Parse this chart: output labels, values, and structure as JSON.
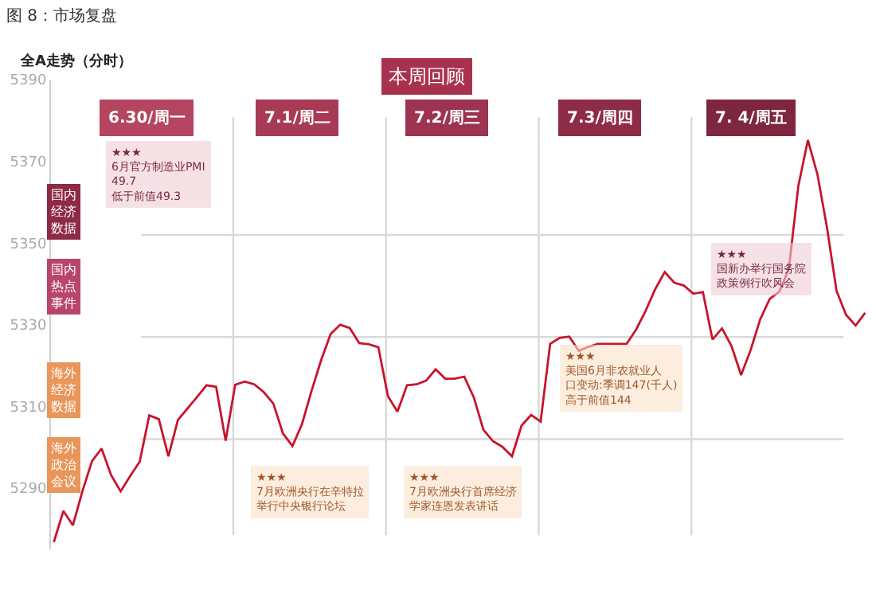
{
  "chart_data": {
    "type": "line",
    "title": "图 8：市场复盘",
    "subtitle": "本周回顾",
    "ylabel": "全A走势（分时）",
    "categories": [
      null,
      null,
      null,
      null,
      null,
      null,
      null,
      null,
      null,
      null,
      null,
      null,
      null,
      null,
      null,
      null,
      null,
      null,
      null,
      null,
      null,
      null,
      null,
      null,
      null,
      null,
      null,
      null,
      null,
      null,
      null,
      null,
      null,
      null,
      null,
      null,
      null,
      null,
      null,
      null,
      null,
      null,
      null,
      null,
      null,
      null,
      null,
      null,
      null,
      null,
      null,
      null,
      null,
      null,
      null,
      null,
      null,
      null,
      null,
      null,
      null,
      null,
      null,
      null,
      null,
      null,
      null,
      null,
      null,
      null,
      null,
      null,
      null,
      null,
      null,
      null,
      null,
      null,
      null,
      null,
      null,
      null,
      null,
      null,
      null,
      null
    ],
    "series": [
      {
        "color": "#c8142c",
        "values": [
          5276.8,
          5284.4,
          5280.9,
          5289.3,
          5296.6,
          5299.7,
          5293.2,
          5289.2,
          5293.0,
          5296.5,
          5307.8,
          5306.9,
          5297.8,
          5306.7,
          5309.5,
          5312.3,
          5315.2,
          5314.8,
          5301.6,
          5315.3,
          5316.1,
          5315.4,
          5313.5,
          5310.7,
          5303.4,
          5300.3,
          5305.7,
          5313.8,
          5321.3,
          5327.7,
          5330.0,
          5329.2,
          5325.5,
          5325.2,
          5324.5,
          5312.5,
          5308.7,
          5315.2,
          5315.4,
          5316.3,
          5319.1,
          5316.8,
          5316.8,
          5317.3,
          5312.2,
          5304.3,
          5301.5,
          5300.1,
          5297.8,
          5305.3,
          5307.9,
          5306.3,
          5325.3,
          5326.8,
          5327.1,
          5323.6,
          5324.6,
          5325.3,
          5325.3,
          5325.3,
          5325.3,
          5328.8,
          5333.4,
          5338.7,
          5342.9,
          5340.3,
          5339.6,
          5337.6,
          5338.0,
          5326.4,
          5329.1,
          5324.8,
          5317.7,
          5323.8,
          5331.3,
          5336.3,
          5338.1,
          5343.6,
          5364.0,
          5375.2,
          5366.8,
          5353.8,
          5338.3,
          5332.4,
          5329.8,
          5332.9
        ]
      }
    ],
    "ylim": [
      5275,
      5390
    ],
    "yticks": [
      5290,
      5310,
      5330,
      5350,
      5370,
      5390
    ],
    "tick_labels": "y",
    "grid": false,
    "marker": "none",
    "line_style": "solid",
    "ref_lines": [
      {
        "axis": "y",
        "value": 5352,
        "label": null,
        "color": "#d9d9d9"
      },
      {
        "axis": "y",
        "value": 5327,
        "label": null,
        "color": "#d9d9d9"
      },
      {
        "axis": "y",
        "value": 5302,
        "label": null,
        "color": "#d9d9d9"
      }
    ],
    "annotations": [
      "6.30/周一",
      "7.1/周二",
      "7.2/周三",
      "7.3/周四",
      "7. 4/周五",
      "国内经济数据",
      "国内热点事件",
      "海外经济数据",
      "海外政治会议",
      "★★★\n6月官方制造业PMI\n49.7\n低于前值49.3",
      "★★★\n国新办举行国务院政策例行吹风会",
      "★★★\n美国6月非农就业人口变动:季调147(千人)\n高于前值144",
      "★★★\n7月欧洲央行在辛特拉举行中央银行论坛",
      "★★★\n7月欧洲央行首席经济学家连恩发表讲话"
    ]
  }
}
